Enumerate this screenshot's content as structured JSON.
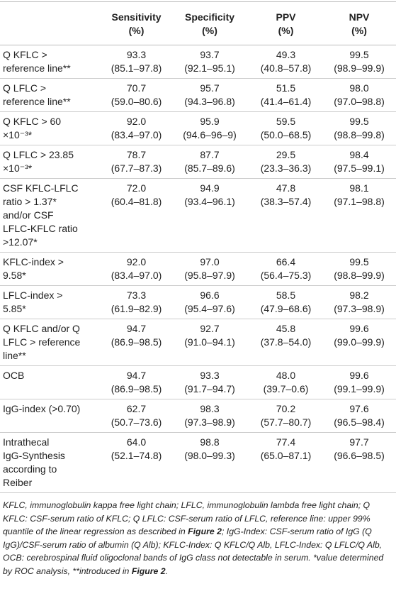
{
  "table": {
    "columns": [
      [
        "Sensitivity",
        "(%)"
      ],
      [
        "Specificity",
        "(%)"
      ],
      [
        "PPV",
        "(%)"
      ],
      [
        "NPV",
        "(%)"
      ]
    ],
    "rows": [
      {
        "label": [
          "Q KFLC >",
          "reference line**"
        ],
        "cells": [
          [
            "93.3",
            "(85.1–97.8)"
          ],
          [
            "93.7",
            "(92.1–95.1)"
          ],
          [
            "49.3",
            "(40.8–57.8)"
          ],
          [
            "99.5",
            "(98.9–99.9)"
          ]
        ]
      },
      {
        "label": [
          "Q LFLC >",
          "reference line**"
        ],
        "cells": [
          [
            "70.7",
            "(59.0–80.6)"
          ],
          [
            "95.7",
            "(94.3–96.8)"
          ],
          [
            "51.5",
            "(41.4–61.4)"
          ],
          [
            "98.0",
            "(97.0–98.8)"
          ]
        ]
      },
      {
        "label": [
          "Q KFLC > 60",
          "×10⁻³*"
        ],
        "cells": [
          [
            "92.0",
            "(83.4–97.0)"
          ],
          [
            "95.9",
            "(94.6–96–9)"
          ],
          [
            "59.5",
            "(50.0–68.5)"
          ],
          [
            "99.5",
            "(98.8–99.8)"
          ]
        ]
      },
      {
        "label": [
          "Q LFLC > 23.85",
          "×10⁻³*"
        ],
        "cells": [
          [
            "78.7",
            "(67.7–87.3)"
          ],
          [
            "87.7",
            "(85.7–89.6)"
          ],
          [
            "29.5",
            "(23.3–36.3)"
          ],
          [
            "98.4",
            "(97.5–99.1)"
          ]
        ]
      },
      {
        "label": [
          "CSF KFLC-LFLC",
          "ratio > 1.37*",
          "and/or CSF",
          "LFLC-KFLC ratio",
          ">12.07*"
        ],
        "cells": [
          [
            "72.0",
            "(60.4–81.8)"
          ],
          [
            "94.9",
            "(93.4–96.1)"
          ],
          [
            "47.8",
            "(38.3–57.4)"
          ],
          [
            "98.1",
            "(97.1–98.8)"
          ]
        ]
      },
      {
        "label": [
          "KFLC-index >",
          "9.58*"
        ],
        "cells": [
          [
            "92.0",
            "(83.4–97.0)"
          ],
          [
            "97.0",
            "(95.8–97.9)"
          ],
          [
            "66.4",
            "(56.4–75.3)"
          ],
          [
            "99.5",
            "(98.8–99.9)"
          ]
        ]
      },
      {
        "label": [
          "LFLC-index >",
          "5.85*"
        ],
        "cells": [
          [
            "73.3",
            "(61.9–82.9)"
          ],
          [
            "96.6",
            "(95.4–97.6)"
          ],
          [
            "58.5",
            "(47.9–68.6)"
          ],
          [
            "98.2",
            "(97.3–98.9)"
          ]
        ]
      },
      {
        "label": [
          "Q KFLC and/or Q",
          "LFLC > reference",
          "line**"
        ],
        "cells": [
          [
            "94.7",
            "(86.9–98.5)"
          ],
          [
            "92.7",
            "(91.0–94.1)"
          ],
          [
            "45.8",
            "(37.8–54.0)"
          ],
          [
            "99.6",
            "(99.0–99.9)"
          ]
        ]
      },
      {
        "label": [
          "OCB"
        ],
        "cells": [
          [
            "94.7",
            "(86.9–98.5)"
          ],
          [
            "93.3",
            "(91.7–94.7)"
          ],
          [
            "48.0",
            "(39.7–0.6)"
          ],
          [
            "99.6",
            "(99.1–99.9)"
          ]
        ]
      },
      {
        "label": [
          "IgG-index (>0.70)"
        ],
        "cells": [
          [
            "62.7",
            "(50.7–73.6)"
          ],
          [
            "98.3",
            "(97.3–98.9)"
          ],
          [
            "70.2",
            "(57.7–80.7)"
          ],
          [
            "97.6",
            "(96.5–98.4)"
          ]
        ]
      },
      {
        "label": [
          "Intrathecal",
          "IgG-Synthesis",
          "according to",
          "Reiber"
        ],
        "cells": [
          [
            "64.0",
            "(52.1–74.8)"
          ],
          [
            "98.8",
            "(98.0–99.3)"
          ],
          [
            "77.4",
            "(65.0–87.1)"
          ],
          [
            "97.7",
            "(96.6–98.5)"
          ]
        ]
      }
    ]
  },
  "footnote": [
    "KFLC, immunoglobulin kappa free light chain; LFLC, immunoglobulin lambda free light chain; Q KFLC: CSF-serum ratio of KFLC; Q LFLC: CSF-serum ratio of LFLC, reference line: upper 99% quantile of the linear regression as described in ",
    "Figure 2",
    "; IgG-Index: CSF-serum ratio of IgG (Q IgG)/CSF-serum ratio of albumin (Q Alb); KFLC-Index: Q KFLC/Q Alb, LFLC-Index: Q LFLC/Q Alb, OCB: cerebrospinal fluid oligoclonal bands of IgG class not detectable in serum. *value determined by ROC analysis, **introduced in ",
    "Figure 2",
    "."
  ]
}
